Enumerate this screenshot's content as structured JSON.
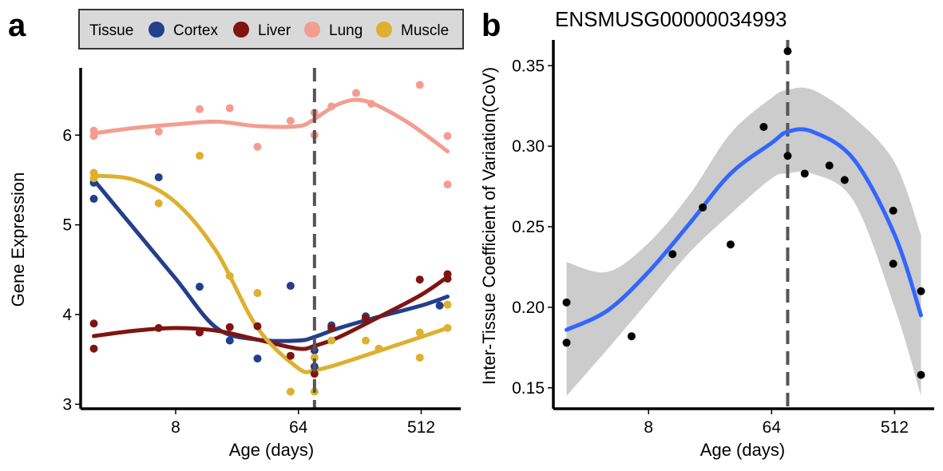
{
  "panel_a_letter": "a",
  "panel_b_letter": "b",
  "legend": {
    "title": "Tissue",
    "entries": [
      {
        "name": "Cortex",
        "color": "#233f8c"
      },
      {
        "name": "Liver",
        "color": "#7e1510"
      },
      {
        "name": "Lung",
        "color": "#f39d90"
      },
      {
        "name": "Muscle",
        "color": "#ddb02f"
      }
    ]
  },
  "chart_data": [
    {
      "type": "scatter",
      "title": "",
      "xlabel": "Age (days)",
      "ylabel": "Gene Expression",
      "x_scale": "log2",
      "x_ticks": [
        8,
        64,
        512
      ],
      "y_ticks": [
        3,
        4,
        5,
        6
      ],
      "xlim": [
        1.6,
        1000
      ],
      "ylim": [
        2.95,
        6.75
      ],
      "vline_x": 84,
      "grid": false,
      "legend_position": "top",
      "series": [
        {
          "name": "Cortex",
          "color": "#233f8c",
          "points": [
            [
              2,
              5.47
            ],
            [
              2,
              5.29
            ],
            [
              6,
              5.53
            ],
            [
              12,
              4.31
            ],
            [
              20,
              3.71
            ],
            [
              32,
              3.51
            ],
            [
              56,
              4.32
            ],
            [
              84,
              3.42
            ],
            [
              84,
              3.6
            ],
            [
              112,
              3.88
            ],
            [
              200,
              3.98
            ],
            [
              700,
              4.1
            ]
          ],
          "trend": [
            [
              2,
              5.5
            ],
            [
              4,
              4.95
            ],
            [
              8,
              4.4
            ],
            [
              16,
              3.85
            ],
            [
              32,
              3.72
            ],
            [
              64,
              3.71
            ],
            [
              84,
              3.75
            ],
            [
              128,
              3.85
            ],
            [
              256,
              3.98
            ],
            [
              512,
              4.1
            ],
            [
              800,
              4.2
            ]
          ]
        },
        {
          "name": "Liver",
          "color": "#7e1510",
          "points": [
            [
              2,
              3.9
            ],
            [
              2,
              3.62
            ],
            [
              6,
              3.85
            ],
            [
              12,
              3.8
            ],
            [
              20,
              3.86
            ],
            [
              32,
              3.87
            ],
            [
              56,
              3.54
            ],
            [
              84,
              3.34
            ],
            [
              112,
              3.85
            ],
            [
              200,
              3.96
            ],
            [
              500,
              4.39
            ],
            [
              800,
              4.4
            ],
            [
              800,
              4.45
            ]
          ],
          "trend": [
            [
              2,
              3.76
            ],
            [
              4,
              3.82
            ],
            [
              8,
              3.85
            ],
            [
              16,
              3.82
            ],
            [
              32,
              3.72
            ],
            [
              64,
              3.62
            ],
            [
              84,
              3.65
            ],
            [
              128,
              3.75
            ],
            [
              256,
              3.98
            ],
            [
              512,
              4.22
            ],
            [
              800,
              4.42
            ]
          ]
        },
        {
          "name": "Lung",
          "color": "#f39d90",
          "points": [
            [
              2,
              6.05
            ],
            [
              2,
              5.99
            ],
            [
              6,
              6.04
            ],
            [
              12,
              6.29
            ],
            [
              20,
              6.3
            ],
            [
              32,
              5.87
            ],
            [
              56,
              6.16
            ],
            [
              84,
              6.25
            ],
            [
              84,
              6.0
            ],
            [
              112,
              6.32
            ],
            [
              170,
              6.47
            ],
            [
              220,
              6.35
            ],
            [
              500,
              6.56
            ],
            [
              800,
              5.99
            ],
            [
              800,
              5.45
            ]
          ],
          "trend": [
            [
              2,
              6.02
            ],
            [
              4,
              6.08
            ],
            [
              8,
              6.12
            ],
            [
              16,
              6.15
            ],
            [
              32,
              6.1
            ],
            [
              64,
              6.1
            ],
            [
              84,
              6.18
            ],
            [
              128,
              6.35
            ],
            [
              200,
              6.38
            ],
            [
              400,
              6.15
            ],
            [
              800,
              5.82
            ]
          ]
        },
        {
          "name": "Muscle",
          "color": "#ddb02f",
          "points": [
            [
              2,
              5.58
            ],
            [
              2,
              5.52
            ],
            [
              6,
              5.24
            ],
            [
              12,
              5.77
            ],
            [
              20,
              4.43
            ],
            [
              32,
              4.24
            ],
            [
              56,
              3.14
            ],
            [
              84,
              3.14
            ],
            [
              84,
              3.52
            ],
            [
              112,
              3.71
            ],
            [
              200,
              3.71
            ],
            [
              250,
              3.62
            ],
            [
              500,
              3.52
            ],
            [
              500,
              3.8
            ],
            [
              800,
              3.85
            ],
            [
              800,
              4.11
            ]
          ],
          "trend": [
            [
              2,
              5.55
            ],
            [
              4,
              5.5
            ],
            [
              8,
              5.25
            ],
            [
              16,
              4.7
            ],
            [
              32,
              3.85
            ],
            [
              64,
              3.4
            ],
            [
              84,
              3.38
            ],
            [
              128,
              3.45
            ],
            [
              256,
              3.6
            ],
            [
              512,
              3.75
            ],
            [
              800,
              3.85
            ]
          ]
        }
      ]
    },
    {
      "type": "scatter",
      "title": "ENSMUSG00000034993",
      "xlabel": "Age (days)",
      "ylabel": "Inter-Tissue Coefficient of Variation(CoV)",
      "x_scale": "log2",
      "x_ticks": [
        8,
        64,
        512
      ],
      "y_ticks": [
        0.15,
        0.2,
        0.25,
        0.3,
        0.35
      ],
      "xlim": [
        1.6,
        1000
      ],
      "ylim": [
        0.137,
        0.366
      ],
      "vline_x": 84,
      "grid": false,
      "series": [
        {
          "color": "#000000",
          "line_color": "#3366ff",
          "band_color": "#cccccc",
          "points": [
            [
              2,
              0.203
            ],
            [
              2,
              0.178
            ],
            [
              6,
              0.182
            ],
            [
              12,
              0.233
            ],
            [
              20,
              0.262
            ],
            [
              32,
              0.239
            ],
            [
              56,
              0.312
            ],
            [
              84,
              0.294
            ],
            [
              84,
              0.359
            ],
            [
              112,
              0.283
            ],
            [
              170,
              0.288
            ],
            [
              220,
              0.279
            ],
            [
              500,
              0.26
            ],
            [
              500,
              0.227
            ],
            [
              800,
              0.21
            ],
            [
              800,
              0.158
            ]
          ],
          "trend": [
            [
              2,
              0.186
            ],
            [
              4,
              0.198
            ],
            [
              8,
              0.222
            ],
            [
              16,
              0.252
            ],
            [
              32,
              0.283
            ],
            [
              64,
              0.302
            ],
            [
              84,
              0.309
            ],
            [
              128,
              0.309
            ],
            [
              256,
              0.292
            ],
            [
              512,
              0.245
            ],
            [
              800,
              0.195
            ]
          ],
          "band_upper": [
            [
              2,
              0.228
            ],
            [
              4,
              0.222
            ],
            [
              8,
              0.24
            ],
            [
              16,
              0.27
            ],
            [
              32,
              0.308
            ],
            [
              64,
              0.33
            ],
            [
              84,
              0.335
            ],
            [
              128,
              0.335
            ],
            [
              256,
              0.318
            ],
            [
              512,
              0.29
            ],
            [
              800,
              0.245
            ]
          ],
          "band_lower": [
            [
              2,
              0.145
            ],
            [
              4,
              0.174
            ],
            [
              8,
              0.204
            ],
            [
              16,
              0.234
            ],
            [
              32,
              0.258
            ],
            [
              64,
              0.28
            ],
            [
              84,
              0.283
            ],
            [
              128,
              0.283
            ],
            [
              256,
              0.266
            ],
            [
              512,
              0.2
            ],
            [
              800,
              0.145
            ]
          ]
        }
      ]
    }
  ]
}
